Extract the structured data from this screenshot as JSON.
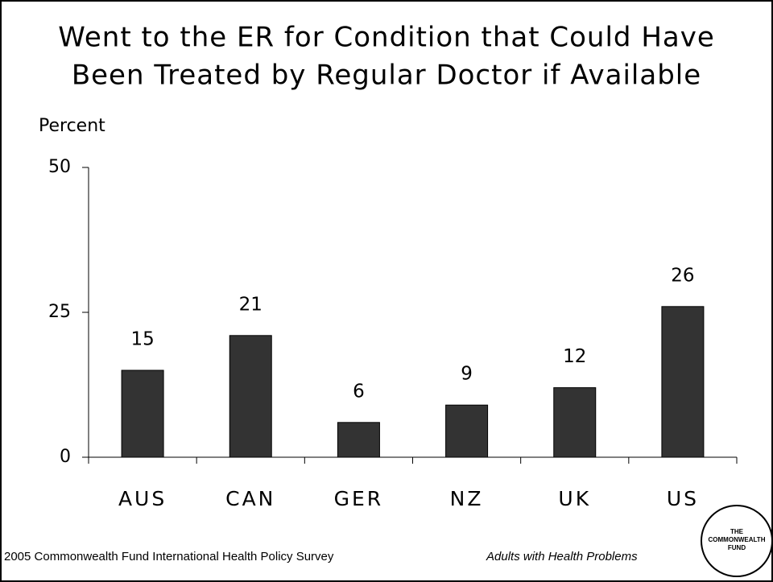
{
  "chart_data": {
    "type": "bar",
    "title": [
      "Went to the ER for Condition that Could Have",
      "Been Treated by Regular Doctor if Available"
    ],
    "ylabel": "Percent",
    "categories": [
      "AUS",
      "CAN",
      "GER",
      "NZ",
      "UK",
      "US"
    ],
    "values": [
      15,
      21,
      6,
      9,
      12,
      26
    ],
    "color": "#333333",
    "ylim": [
      0,
      50
    ],
    "yticks": [
      0,
      25,
      50
    ],
    "grid": false,
    "source": "2005 Commonwealth Fund International Health Policy Survey",
    "note": "Adults with Health Problems",
    "logo": [
      "THE",
      "COMMONWEALTH",
      "FUND"
    ]
  }
}
